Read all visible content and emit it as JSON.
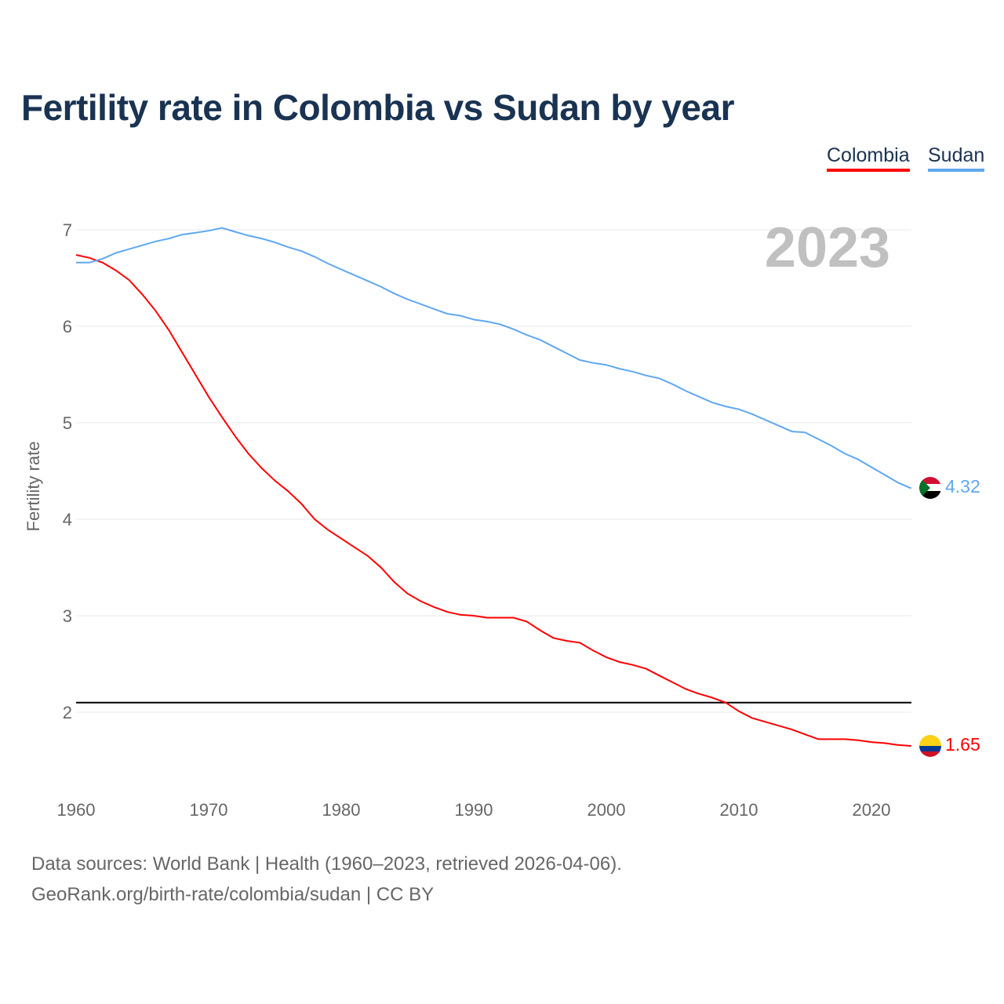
{
  "title": "Fertility rate in Colombia vs Sudan by year",
  "legend": [
    {
      "name": "Colombia",
      "color": "#ff0000"
    },
    {
      "name": "Sudan",
      "color": "#5fa8ef"
    }
  ],
  "year_label": "2023",
  "sources": {
    "line1": "Data sources: World Bank | Health (1960–2023, retrieved 2026-04-06).",
    "line2": "GeoRank.org/birth-rate/colombia/sudan | CC BY"
  },
  "chart_data": {
    "type": "line",
    "title": "Fertility rate in Colombia vs Sudan by year",
    "xlabel": "",
    "ylabel": "Fertility rate",
    "xlim": [
      1960,
      2023
    ],
    "ylim": [
      1.2,
      7.3
    ],
    "xticks": [
      1960,
      1970,
      1980,
      1990,
      2000,
      2010,
      2020
    ],
    "yticks": [
      2,
      3,
      4,
      5,
      6,
      7
    ],
    "grid": true,
    "reference_line": 2.1,
    "x_start": 1960,
    "series": [
      {
        "name": "Colombia",
        "color": "#ff0000",
        "end_label": "1.65",
        "values": [
          6.74,
          6.71,
          6.66,
          6.58,
          6.48,
          6.33,
          6.16,
          5.96,
          5.73,
          5.5,
          5.27,
          5.06,
          4.86,
          4.68,
          4.53,
          4.4,
          4.29,
          4.16,
          4.0,
          3.89,
          3.8,
          3.71,
          3.62,
          3.5,
          3.35,
          3.23,
          3.15,
          3.09,
          3.04,
          3.01,
          3.0,
          2.98,
          2.98,
          2.98,
          2.94,
          2.85,
          2.77,
          2.74,
          2.72,
          2.64,
          2.57,
          2.52,
          2.49,
          2.45,
          2.38,
          2.31,
          2.24,
          2.19,
          2.15,
          2.1,
          2.01,
          1.94,
          1.9,
          1.86,
          1.82,
          1.77,
          1.72,
          1.72,
          1.72,
          1.71,
          1.69,
          1.68,
          1.66,
          1.65
        ]
      },
      {
        "name": "Sudan",
        "color": "#5fa8ef",
        "end_label": "4.32",
        "values": [
          6.66,
          6.66,
          6.7,
          6.76,
          6.8,
          6.84,
          6.88,
          6.91,
          6.95,
          6.97,
          6.99,
          7.02,
          6.98,
          6.94,
          6.91,
          6.87,
          6.82,
          6.78,
          6.72,
          6.65,
          6.59,
          6.53,
          6.47,
          6.41,
          6.34,
          6.28,
          6.23,
          6.18,
          6.13,
          6.11,
          6.07,
          6.05,
          6.02,
          5.97,
          5.91,
          5.86,
          5.79,
          5.72,
          5.65,
          5.62,
          5.6,
          5.56,
          5.53,
          5.49,
          5.46,
          5.4,
          5.33,
          5.27,
          5.21,
          5.17,
          5.14,
          5.09,
          5.03,
          4.97,
          4.91,
          4.9,
          4.83,
          4.76,
          4.68,
          4.62,
          4.54,
          4.46,
          4.38,
          4.32
        ]
      }
    ]
  }
}
